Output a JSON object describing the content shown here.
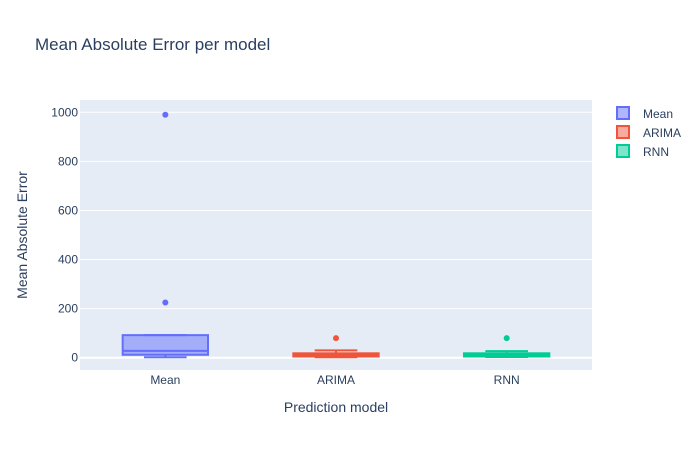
{
  "chart_data": {
    "type": "box",
    "title": "Mean Absolute Error per model",
    "xlabel": "Prediction model",
    "ylabel": "Mean Absolute Error",
    "categories": [
      "Mean",
      "ARIMA",
      "RNN"
    ],
    "ylim": [
      -50,
      1050
    ],
    "yticks": [
      0,
      200,
      400,
      600,
      800,
      1000
    ],
    "grid": true,
    "legend_position": "top-right",
    "series": [
      {
        "name": "Mean",
        "color": "#636efa",
        "box": {
          "q1": 12,
          "median": 28,
          "q3": 92,
          "lower_whisker": 2,
          "upper_whisker": 92
        },
        "outliers": [
          225,
          990
        ]
      },
      {
        "name": "ARIMA",
        "color": "#ef553b",
        "box": {
          "q1": 5,
          "median": 12,
          "q3": 18,
          "lower_whisker": 2,
          "upper_whisker": 30
        },
        "outliers": [
          80
        ]
      },
      {
        "name": "RNN",
        "color": "#00cc96",
        "box": {
          "q1": 5,
          "median": 12,
          "q3": 18,
          "lower_whisker": 3,
          "upper_whisker": 27
        },
        "outliers": [
          80
        ]
      }
    ]
  }
}
